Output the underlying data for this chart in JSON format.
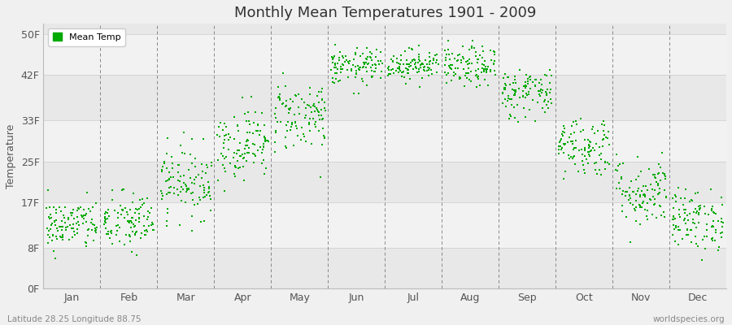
{
  "title": "Monthly Mean Temperatures 1901 - 2009",
  "ylabel": "Temperature",
  "xlabel_lat_lon": "Latitude 28.25 Longitude 88.75",
  "watermark": "worldspecies.org",
  "ytick_values": [
    0,
    8,
    17,
    25,
    33,
    42,
    50
  ],
  "ytick_labels": [
    "0F",
    "8F",
    "17F",
    "25F",
    "33F",
    "42F",
    "50F"
  ],
  "months": [
    "Jan",
    "Feb",
    "Mar",
    "Apr",
    "May",
    "Jun",
    "Jul",
    "Aug",
    "Sep",
    "Oct",
    "Nov",
    "Dec"
  ],
  "dot_color": "#00aa00",
  "dot_size": 2.5,
  "background_color": "#eeeeee",
  "mean_temps_F": [
    12.5,
    13.0,
    21.0,
    28.5,
    34.0,
    43.5,
    44.0,
    43.5,
    38.5,
    28.0,
    19.0,
    13.5
  ],
  "spread": [
    2.5,
    3.0,
    3.5,
    3.5,
    3.5,
    1.8,
    1.5,
    2.0,
    2.5,
    3.0,
    3.5,
    3.0
  ],
  "n_points": 109,
  "band_colors": [
    "#e8e8e8",
    "#f2f2f2"
  ],
  "fig_bg": "#f0f0f0"
}
